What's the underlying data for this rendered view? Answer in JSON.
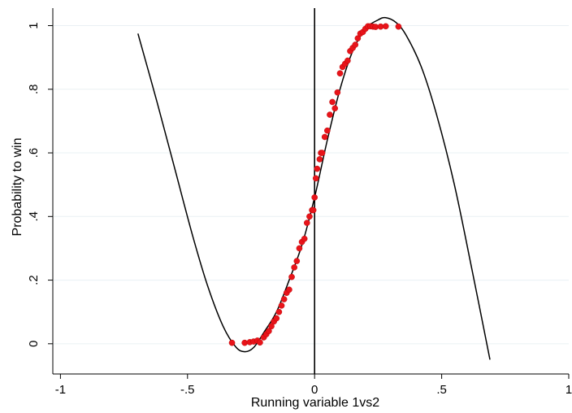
{
  "chart_data": {
    "type": "scatter",
    "title": "",
    "xlabel": "Running variable 1vs2",
    "ylabel": "Probability to win",
    "xlim": [
      -1.03,
      1.0
    ],
    "ylim": [
      -0.095,
      1.055
    ],
    "x_ticks": [
      -1,
      -0.5,
      0,
      0.5,
      1
    ],
    "x_tick_labels": [
      "-1",
      "-.5",
      "0",
      ".5",
      "1"
    ],
    "y_ticks": [
      0,
      0.2,
      0.4,
      0.6,
      0.8,
      1
    ],
    "y_tick_labels": [
      "0",
      ".2",
      ".4",
      ".6",
      ".8",
      "1"
    ],
    "grid": "horizontal",
    "legend": "none",
    "cutoff_line_x": 0,
    "colors": {
      "points": "#e8141a",
      "fit": "#000000",
      "grid": "#eaf0f4",
      "cutoff": "#000000"
    },
    "series": [
      {
        "kind": "points",
        "x": [
          -0.325,
          -0.275,
          -0.255,
          -0.24,
          -0.225,
          -0.215,
          -0.2,
          -0.19,
          -0.18,
          -0.17,
          -0.16,
          -0.15,
          -0.14,
          -0.13,
          -0.12,
          -0.11,
          -0.1,
          -0.09,
          -0.08,
          -0.07,
          -0.06,
          -0.05,
          -0.04,
          -0.03,
          -0.02,
          -0.01,
          -0.005,
          0.0,
          0.005,
          0.01,
          0.02,
          0.025,
          0.03,
          0.04,
          0.05,
          0.06,
          0.07,
          0.08,
          0.09,
          0.1,
          0.11,
          0.12,
          0.13,
          0.14,
          0.15,
          0.16,
          0.17,
          0.18,
          0.19,
          0.2,
          0.21,
          0.22,
          0.23,
          0.24,
          0.26,
          0.28,
          0.33
        ],
        "y": [
          0.003,
          0.003,
          0.005,
          0.007,
          0.01,
          0.004,
          0.02,
          0.03,
          0.04,
          0.055,
          0.07,
          0.08,
          0.1,
          0.12,
          0.14,
          0.16,
          0.17,
          0.21,
          0.24,
          0.26,
          0.3,
          0.32,
          0.33,
          0.38,
          0.4,
          0.42,
          0.42,
          0.46,
          0.52,
          0.55,
          0.58,
          0.6,
          0.6,
          0.65,
          0.67,
          0.72,
          0.76,
          0.74,
          0.79,
          0.85,
          0.87,
          0.88,
          0.89,
          0.92,
          0.93,
          0.94,
          0.96,
          0.975,
          0.98,
          0.99,
          0.998,
          0.998,
          0.997,
          0.996,
          0.997,
          0.998,
          0.997
        ]
      },
      {
        "kind": "fit-curve",
        "x": [
          -0.695,
          -0.62,
          -0.55,
          -0.48,
          -0.42,
          -0.36,
          -0.31,
          -0.275,
          -0.24,
          -0.2,
          -0.15,
          -0.1,
          -0.05,
          0.0,
          0.05,
          0.1,
          0.15,
          0.2,
          0.25,
          0.28,
          0.32,
          0.36,
          0.42,
          0.48,
          0.55,
          0.62,
          0.69
        ],
        "y": [
          0.975,
          0.76,
          0.55,
          0.34,
          0.18,
          0.055,
          -0.01,
          -0.025,
          -0.012,
          0.035,
          0.1,
          0.2,
          0.31,
          0.46,
          0.64,
          0.8,
          0.92,
          0.99,
          1.018,
          1.025,
          1.01,
          0.97,
          0.87,
          0.72,
          0.5,
          0.23,
          -0.05
        ]
      }
    ]
  }
}
